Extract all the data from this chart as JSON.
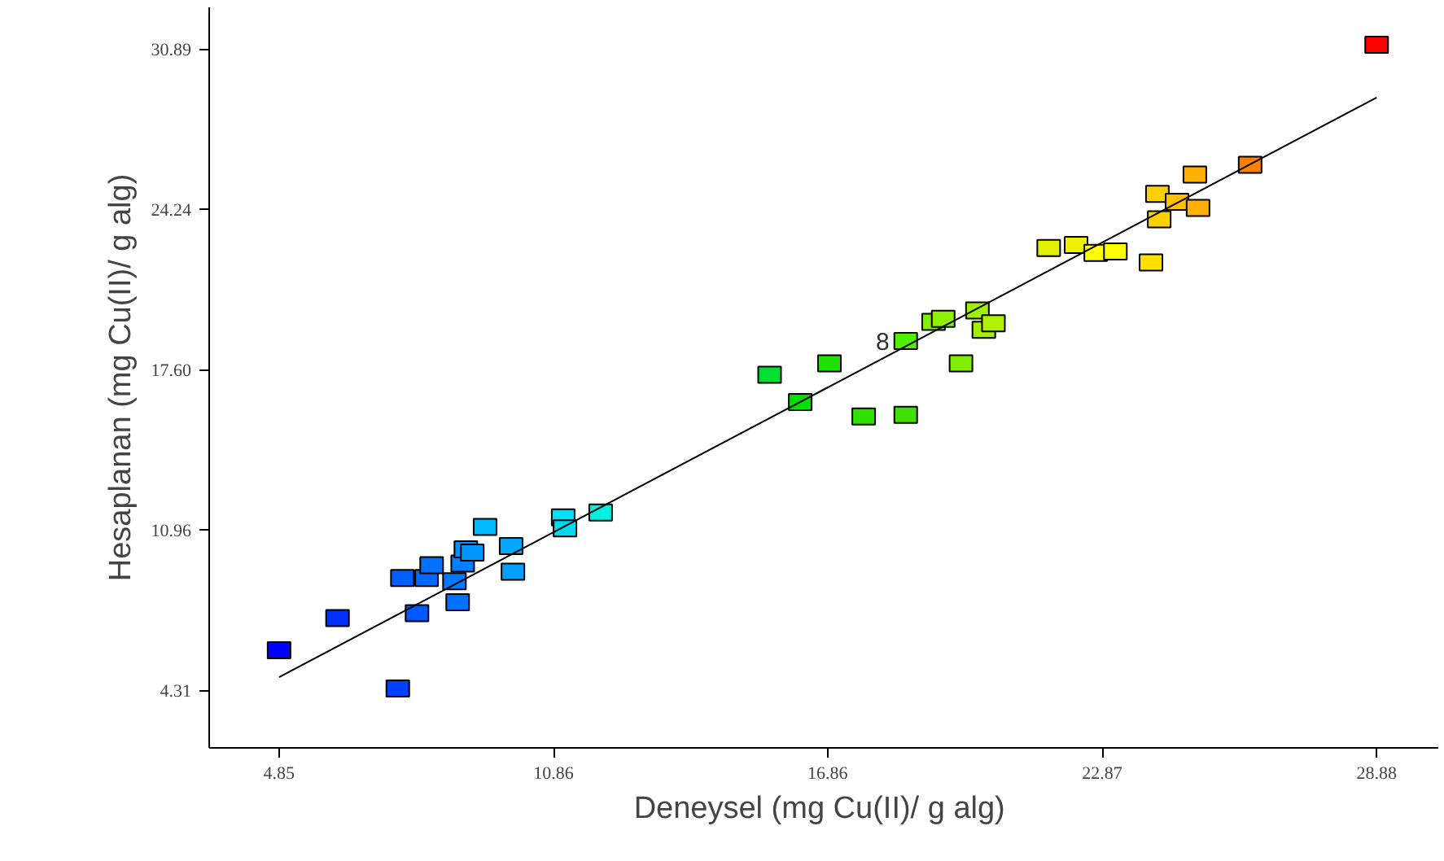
{
  "chart_data": {
    "type": "scatter",
    "xlabel": "Deneysel  (mg Cu(II)/ g alg)",
    "ylabel": "Hesaplanan (mg Cu(II)/ g alg)",
    "xlim": [
      3.32,
      30.23
    ],
    "ylim": [
      1.92,
      32.62
    ],
    "xticks": [
      4.85,
      10.86,
      16.86,
      22.87,
      28.88
    ],
    "yticks": [
      4.31,
      10.96,
      {
        "value": 17.6,
        "label": "17.60"
      },
      24.24,
      30.89
    ],
    "grid": false,
    "annotations": [
      {
        "text": "8",
        "x": 18.57,
        "y": 18.79
      }
    ],
    "series": [
      {
        "marker": "square",
        "x": [
          4.85,
          6.13,
          7.45,
          7.55,
          7.87,
          8.08,
          8.19,
          8.69,
          8.76,
          8.87,
          8.94,
          9.08,
          9.36,
          9.93,
          9.97,
          11.07,
          11.11,
          11.89,
          15.59,
          16.26,
          16.9,
          17.65,
          18.57,
          18.57,
          19.18,
          19.39,
          19.78,
          20.14,
          20.28,
          20.49,
          21.7,
          22.3,
          22.73,
          23.16,
          23.94,
          24.08,
          24.12,
          24.51,
          24.9,
          24.97,
          26.11,
          28.88
        ],
        "values": [
          5.97,
          7.3,
          4.38,
          8.96,
          7.5,
          8.96,
          9.49,
          8.83,
          7.96,
          9.56,
          10.15,
          10.02,
          11.08,
          10.29,
          9.22,
          11.48,
          11.02,
          11.68,
          17.39,
          16.26,
          17.86,
          15.66,
          18.79,
          15.73,
          19.58,
          19.71,
          17.86,
          20.05,
          19.25,
          19.52,
          22.64,
          22.77,
          22.44,
          22.5,
          22.04,
          24.89,
          23.83,
          24.56,
          25.69,
          24.3,
          26.09,
          31.07
        ],
        "colors": [
          "#0000ff",
          "#0030ff",
          "#0040ff",
          "#0060ff",
          "#0058ff",
          "#0068ff",
          "#0070ff",
          "#0078ff",
          "#0070ff",
          "#0080ff",
          "#0090ff",
          "#0098ff",
          "#00b8ff",
          "#00a8ff",
          "#00a0ff",
          "#00e0ff",
          "#00d8f0",
          "#00f0e0",
          "#00e030",
          "#00e000",
          "#20e000",
          "#30e000",
          "#50f000",
          "#40e000",
          "#80f000",
          "#90f000",
          "#80f000",
          "#a0f000",
          "#a0f000",
          "#b0f000",
          "#e0f000",
          "#f0f000",
          "#ffff00",
          "#ffff00",
          "#ffe000",
          "#ffd000",
          "#ffd000",
          "#ffc000",
          "#ffb000",
          "#ffb000",
          "#ff8000",
          "#ff0000"
        ]
      },
      {
        "type": "line",
        "x": [
          4.85,
          28.88
        ],
        "values": [
          4.85,
          28.88
        ],
        "color": "#000000"
      }
    ]
  }
}
